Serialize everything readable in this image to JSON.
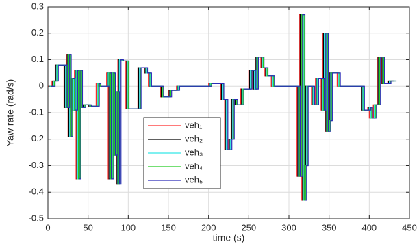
{
  "chart_data": {
    "type": "line",
    "step": "post",
    "x_label": "time (s)",
    "y_label": "Yaw rate (rad/s)",
    "xlim": [
      0,
      450
    ],
    "xticks": [
      0,
      50,
      100,
      150,
      200,
      250,
      300,
      350,
      400,
      450
    ],
    "ylim": [
      -0.5,
      0.3
    ],
    "yticks": [
      -0.5,
      -0.4,
      -0.3,
      -0.2,
      -0.1,
      0,
      0.1,
      0.2,
      0.3
    ],
    "grid": true,
    "legend": "center",
    "series": [
      {
        "name": "veh₁",
        "color": "#ff2a2a",
        "x": [
          0,
          5,
          9,
          20,
          23,
          25,
          27,
          30,
          33,
          35,
          37,
          39,
          43,
          50,
          60,
          62,
          73,
          75,
          78,
          80,
          83,
          85,
          87,
          90,
          97,
          112,
          120,
          125,
          140,
          150,
          160,
          200,
          215,
          220,
          225,
          228,
          232,
          240,
          250,
          255,
          258,
          265,
          270,
          278,
          310,
          313,
          316,
          318,
          320,
          328,
          333,
          340,
          342,
          345,
          348,
          350,
          360,
          390,
          398,
          400,
          405,
          410,
          415,
          423,
          430
        ],
        "values": [
          0,
          0.02,
          0.08,
          -0.08,
          0.12,
          -0.19,
          0.03,
          -0.09,
          0.06,
          -0.35,
          0.06,
          -0.08,
          -0.07,
          -0.075,
          0.01,
          0,
          0.05,
          -0.35,
          0.05,
          -0.26,
          -0.02,
          -0.37,
          0.1,
          0.095,
          -0.085,
          0.07,
          0.05,
          0,
          -0.04,
          -0.015,
          0,
          0.01,
          -0.05,
          -0.24,
          -0.2,
          -0.05,
          -0.07,
          -0.01,
          0.06,
          -0.01,
          0.11,
          0.07,
          0.04,
          0,
          -0.34,
          0.27,
          -0.43,
          -0.3,
          0,
          -0.07,
          0.03,
          -0.09,
          0.2,
          -0.17,
          -0.13,
          0.05,
          0,
          -0.09,
          -0.08,
          -0.12,
          -0.07,
          0.11,
          0.01,
          0.02,
          0.02
        ]
      },
      {
        "name": "veh₂",
        "color": "#000000",
        "x": [
          1,
          6,
          10,
          21,
          24,
          26,
          28,
          31,
          34,
          36,
          38,
          40,
          44,
          51,
          61,
          63,
          74,
          76,
          79,
          81,
          84,
          86,
          88,
          91,
          98,
          113,
          121,
          126,
          141,
          151,
          161,
          201,
          216,
          221,
          226,
          229,
          233,
          241,
          251,
          256,
          259,
          266,
          271,
          279,
          311,
          314,
          317,
          319,
          321,
          329,
          334,
          341,
          343,
          346,
          349,
          351,
          361,
          391,
          399,
          401,
          406,
          411,
          416,
          424,
          431
        ],
        "values": [
          0,
          0.02,
          0.08,
          -0.08,
          0.12,
          -0.19,
          0.03,
          -0.09,
          0.06,
          -0.35,
          0.06,
          -0.08,
          -0.07,
          -0.075,
          0.01,
          0,
          0.05,
          -0.35,
          0.05,
          -0.26,
          -0.02,
          -0.37,
          0.1,
          0.095,
          -0.085,
          0.07,
          0.05,
          0,
          -0.04,
          -0.015,
          0,
          0.01,
          -0.05,
          -0.24,
          -0.2,
          -0.05,
          -0.07,
          -0.01,
          0.06,
          -0.01,
          0.11,
          0.07,
          0.04,
          0,
          -0.34,
          0.27,
          -0.43,
          -0.3,
          0,
          -0.07,
          0.03,
          -0.09,
          0.2,
          -0.17,
          -0.13,
          0.05,
          0,
          -0.09,
          -0.08,
          -0.12,
          -0.07,
          0.11,
          0.01,
          0.02,
          0.02
        ]
      },
      {
        "name": "veh₃",
        "color": "#33e6e6",
        "x": [
          2,
          7,
          11,
          22,
          25,
          27,
          29,
          32,
          35,
          37,
          39,
          41,
          45,
          52,
          62,
          64,
          75,
          77,
          80,
          82,
          85,
          87,
          89,
          92,
          99,
          114,
          122,
          127,
          142,
          152,
          162,
          202,
          217,
          222,
          227,
          230,
          234,
          242,
          252,
          257,
          260,
          267,
          272,
          280,
          312,
          315,
          318,
          320,
          322,
          330,
          335,
          342,
          344,
          347,
          350,
          352,
          362,
          392,
          400,
          402,
          407,
          412,
          417,
          425,
          432
        ],
        "values": [
          0,
          0.02,
          0.08,
          -0.08,
          0.12,
          -0.19,
          0.03,
          -0.09,
          0.06,
          -0.35,
          0.06,
          -0.08,
          -0.07,
          -0.075,
          0.01,
          0,
          0.05,
          -0.35,
          0.05,
          -0.26,
          -0.02,
          -0.37,
          0.1,
          0.095,
          -0.085,
          0.07,
          0.05,
          0,
          -0.04,
          -0.015,
          0,
          0.01,
          -0.05,
          -0.24,
          -0.2,
          -0.05,
          -0.07,
          -0.01,
          0.06,
          -0.01,
          0.11,
          0.07,
          0.04,
          0,
          -0.34,
          0.27,
          -0.43,
          -0.3,
          0,
          -0.07,
          0.03,
          -0.09,
          0.2,
          -0.17,
          -0.13,
          0.05,
          0,
          -0.09,
          -0.08,
          -0.12,
          -0.07,
          0.11,
          0.01,
          0.02,
          0.02
        ]
      },
      {
        "name": "veh₄",
        "color": "#22cc22",
        "x": [
          3,
          8,
          12,
          23,
          26,
          28,
          30,
          33,
          36,
          38,
          40,
          42,
          46,
          53,
          63,
          65,
          76,
          78,
          81,
          83,
          86,
          88,
          90,
          93,
          100,
          115,
          123,
          128,
          143,
          153,
          163,
          203,
          218,
          223,
          228,
          231,
          235,
          243,
          253,
          258,
          261,
          268,
          273,
          281,
          313,
          316,
          319,
          321,
          323,
          331,
          336,
          343,
          345,
          348,
          351,
          353,
          363,
          393,
          401,
          403,
          408,
          413,
          418,
          426,
          433
        ],
        "values": [
          0,
          0.02,
          0.08,
          -0.08,
          0.12,
          -0.19,
          0.03,
          -0.09,
          0.06,
          -0.35,
          0.06,
          -0.08,
          -0.07,
          -0.075,
          0.01,
          0,
          0.05,
          -0.35,
          0.05,
          -0.26,
          -0.02,
          -0.37,
          0.1,
          0.095,
          -0.085,
          0.07,
          0.05,
          0,
          -0.04,
          -0.015,
          0,
          0.01,
          -0.05,
          -0.24,
          -0.2,
          -0.05,
          -0.07,
          -0.01,
          0.06,
          -0.01,
          0.11,
          0.07,
          0.04,
          0,
          -0.34,
          0.27,
          -0.43,
          -0.3,
          0,
          -0.07,
          0.03,
          -0.09,
          0.2,
          -0.17,
          -0.13,
          0.05,
          0,
          -0.09,
          -0.08,
          -0.12,
          -0.07,
          0.11,
          0.01,
          0.02,
          0.02
        ]
      },
      {
        "name": "veh₅",
        "color": "#2b2bb8",
        "x": [
          4,
          9,
          13,
          24,
          27,
          29,
          31,
          34,
          37,
          39,
          41,
          43,
          47,
          54,
          64,
          66,
          77,
          79,
          82,
          84,
          87,
          89,
          91,
          94,
          101,
          116,
          124,
          129,
          144,
          154,
          164,
          204,
          219,
          224,
          229,
          232,
          236,
          244,
          254,
          259,
          262,
          269,
          274,
          282,
          314,
          317,
          320,
          322,
          324,
          332,
          337,
          344,
          346,
          349,
          352,
          354,
          364,
          394,
          402,
          404,
          409,
          414,
          419,
          427,
          434
        ],
        "values": [
          0,
          0.02,
          0.08,
          -0.08,
          0.12,
          -0.19,
          0.03,
          -0.09,
          0.06,
          -0.35,
          0.06,
          -0.08,
          -0.07,
          -0.075,
          0.01,
          0,
          0.05,
          -0.35,
          0.05,
          -0.26,
          -0.02,
          -0.37,
          0.1,
          0.095,
          -0.085,
          0.07,
          0.05,
          0,
          -0.04,
          -0.015,
          0,
          0.01,
          -0.05,
          -0.24,
          -0.2,
          -0.05,
          -0.07,
          -0.01,
          0.06,
          -0.01,
          0.11,
          0.07,
          0.04,
          0,
          -0.34,
          0.27,
          -0.43,
          -0.3,
          0,
          -0.07,
          0.03,
          -0.09,
          0.2,
          -0.17,
          -0.13,
          0.05,
          0,
          -0.09,
          -0.08,
          -0.12,
          -0.07,
          0.11,
          0.01,
          0.02,
          0.02
        ]
      }
    ]
  }
}
